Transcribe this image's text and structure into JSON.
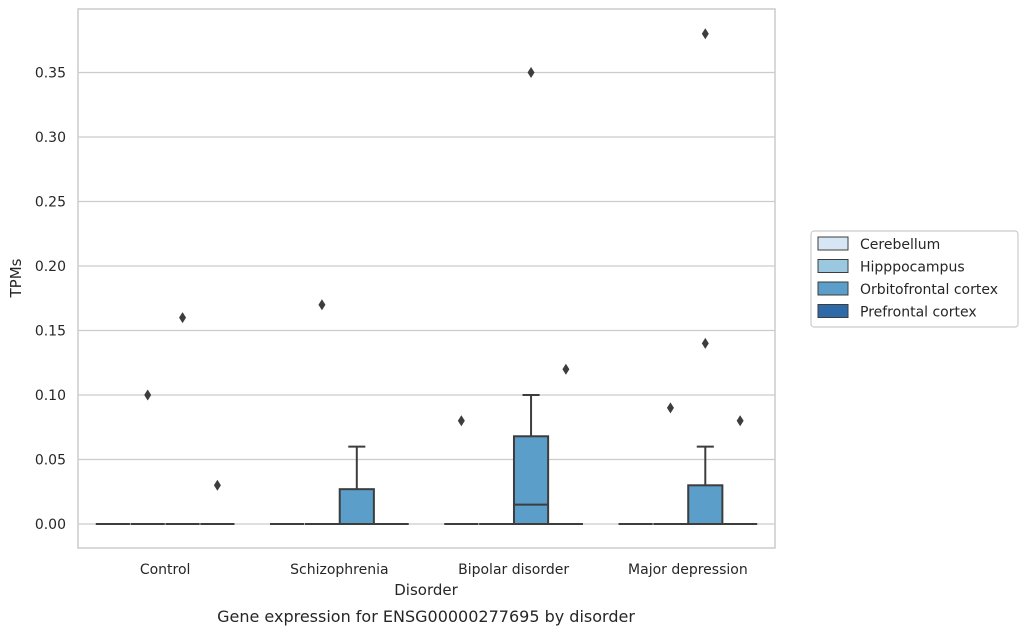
{
  "chart_data": {
    "type": "box",
    "xlabel": "Disorder",
    "ylabel": "TPMs",
    "caption": "Gene expression for ENSG00000277695 by disorder",
    "ylim": [
      -0.018,
      0.398
    ],
    "yticks": [
      "0.00",
      "0.05",
      "0.10",
      "0.15",
      "0.20",
      "0.25",
      "0.30",
      "0.35"
    ],
    "ytick_values": [
      0,
      0.05,
      0.1,
      0.15,
      0.2,
      0.25,
      0.3,
      0.35
    ],
    "grid": true,
    "legend_position": "right",
    "categories": [
      "Control",
      "Schizophrenia",
      "Bipolar disorder",
      "Major depression"
    ],
    "series": [
      {
        "name": "Cerebellum",
        "color": "#d6e6f4",
        "boxes": [
          {
            "q1": 0,
            "median": 0,
            "q3": 0,
            "whisker_low": 0,
            "whisker_high": 0,
            "outliers": []
          },
          {
            "q1": 0,
            "median": 0,
            "q3": 0,
            "whisker_low": 0,
            "whisker_high": 0,
            "outliers": []
          },
          {
            "q1": 0,
            "median": 0,
            "q3": 0,
            "whisker_low": 0,
            "whisker_high": 0,
            "outliers": [
              0.08
            ]
          },
          {
            "q1": 0,
            "median": 0,
            "q3": 0,
            "whisker_low": 0,
            "whisker_high": 0,
            "outliers": []
          }
        ]
      },
      {
        "name": "Hipppocampus",
        "color": "#9ac8e0",
        "boxes": [
          {
            "q1": 0,
            "median": 0,
            "q3": 0,
            "whisker_low": 0,
            "whisker_high": 0,
            "outliers": [
              0.1
            ]
          },
          {
            "q1": 0,
            "median": 0,
            "q3": 0,
            "whisker_low": 0,
            "whisker_high": 0,
            "outliers": [
              0.17
            ]
          },
          {
            "q1": 0,
            "median": 0,
            "q3": 0,
            "whisker_low": 0,
            "whisker_high": 0,
            "outliers": []
          },
          {
            "q1": 0,
            "median": 0,
            "q3": 0,
            "whisker_low": 0,
            "whisker_high": 0,
            "outliers": [
              0.09
            ]
          }
        ]
      },
      {
        "name": "Orbitofrontal cortex",
        "color": "#5a9ec9",
        "boxes": [
          {
            "q1": 0,
            "median": 0,
            "q3": 0,
            "whisker_low": 0,
            "whisker_high": 0,
            "outliers": [
              0.16
            ]
          },
          {
            "q1": 0,
            "median": 0,
            "q3": 0.027,
            "whisker_low": 0,
            "whisker_high": 0.06,
            "outliers": []
          },
          {
            "q1": 0,
            "median": 0.015,
            "q3": 0.068,
            "whisker_low": 0,
            "whisker_high": 0.1,
            "outliers": [
              0.35
            ]
          },
          {
            "q1": 0,
            "median": 0,
            "q3": 0.03,
            "whisker_low": 0,
            "whisker_high": 0.06,
            "outliers": [
              0.38,
              0.14
            ]
          }
        ]
      },
      {
        "name": "Prefrontal cortex",
        "color": "#2e6aa8",
        "boxes": [
          {
            "q1": 0,
            "median": 0,
            "q3": 0,
            "whisker_low": 0,
            "whisker_high": 0,
            "outliers": [
              0.03
            ]
          },
          {
            "q1": 0,
            "median": 0,
            "q3": 0,
            "whisker_low": 0,
            "whisker_high": 0,
            "outliers": []
          },
          {
            "q1": 0,
            "median": 0,
            "q3": 0,
            "whisker_low": 0,
            "whisker_high": 0,
            "outliers": [
              0.12
            ]
          },
          {
            "q1": 0,
            "median": 0,
            "q3": 0,
            "whisker_low": 0,
            "whisker_high": 0,
            "outliers": [
              0.08
            ]
          }
        ]
      }
    ]
  }
}
